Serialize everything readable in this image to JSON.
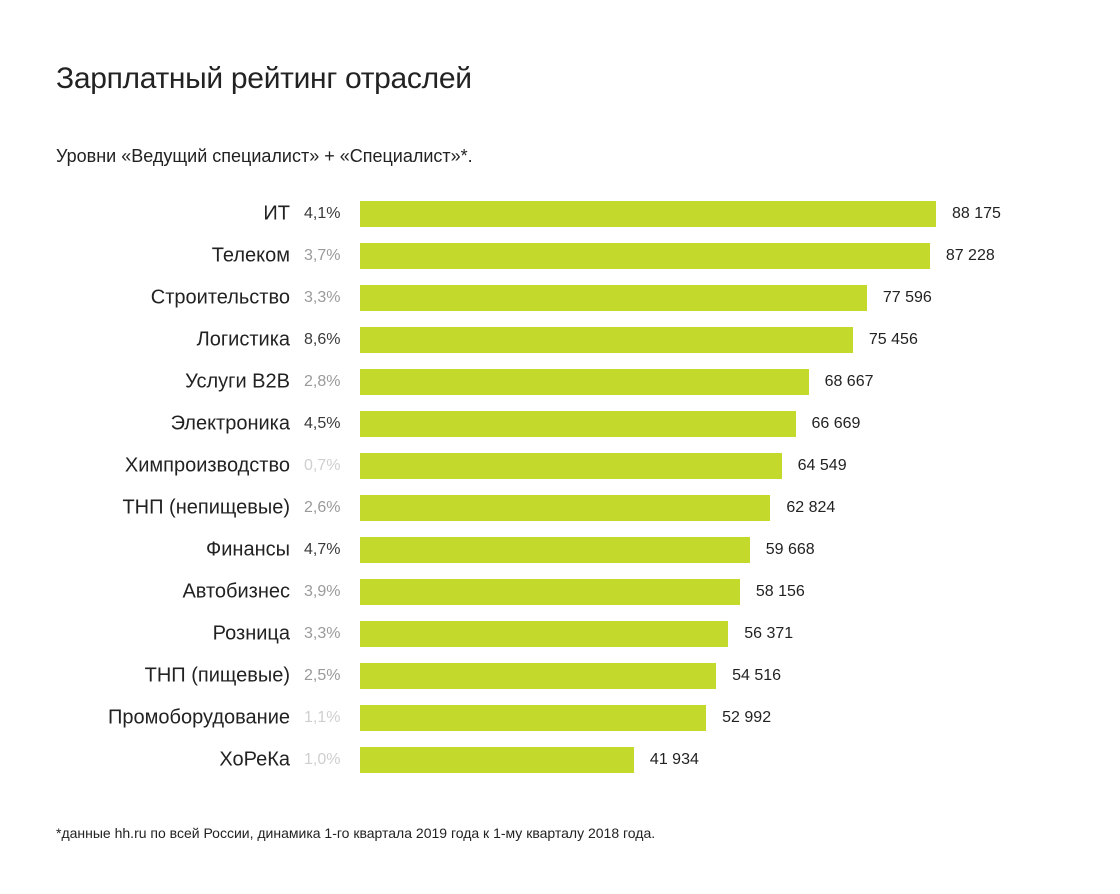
{
  "chart_data": {
    "type": "bar",
    "orientation": "horizontal",
    "title": "Зарплатный рейтинг отраслей",
    "subtitle": "Уровни «Ведущий специалист» + «Специалист»*.",
    "footnote": "*данные hh.ru по всей России, динамика 1-го квартала 2019 года к 1-му кварталу 2018 года.",
    "bar_color": "#c3da2c",
    "pct_colors": {
      "high": "#3a3a3a",
      "mid": "#9a9a9a",
      "low": "#cfcfcf"
    },
    "grid": false,
    "xlim": [
      0,
      88175
    ],
    "categories": [
      "ИТ",
      "Телеком",
      "Строительство",
      "Логистика",
      "Услуги B2B",
      "Электроника",
      "Химпроизводство",
      "ТНП (непищевые)",
      "Финансы",
      "Автобизнес",
      "Розница",
      "ТНП (пищевые)",
      "Промоборудование",
      "ХоРеКа"
    ],
    "values": [
      88175,
      87228,
      77596,
      75456,
      68667,
      66669,
      64549,
      62824,
      59668,
      58156,
      56371,
      54516,
      52992,
      41934
    ],
    "value_labels": [
      "88 175",
      "87 228",
      "77 596",
      "75 456",
      "68 667",
      "66 669",
      "64 549",
      "62 824",
      "59 668",
      "58 156",
      "56 371",
      "54 516",
      "52 992",
      "41 934"
    ],
    "growth": [
      4.1,
      3.7,
      3.3,
      8.6,
      2.8,
      4.5,
      0.7,
      2.6,
      4.7,
      3.9,
      3.3,
      2.5,
      1.1,
      1.0
    ],
    "growth_labels": [
      "4,1%",
      "3,7%",
      "3,3%",
      "8,6%",
      "2,8%",
      "4,5%",
      "0,7%",
      "2,6%",
      "4,7%",
      "3,9%",
      "3,3%",
      "2,5%",
      "1,1%",
      "1,0%"
    ]
  }
}
